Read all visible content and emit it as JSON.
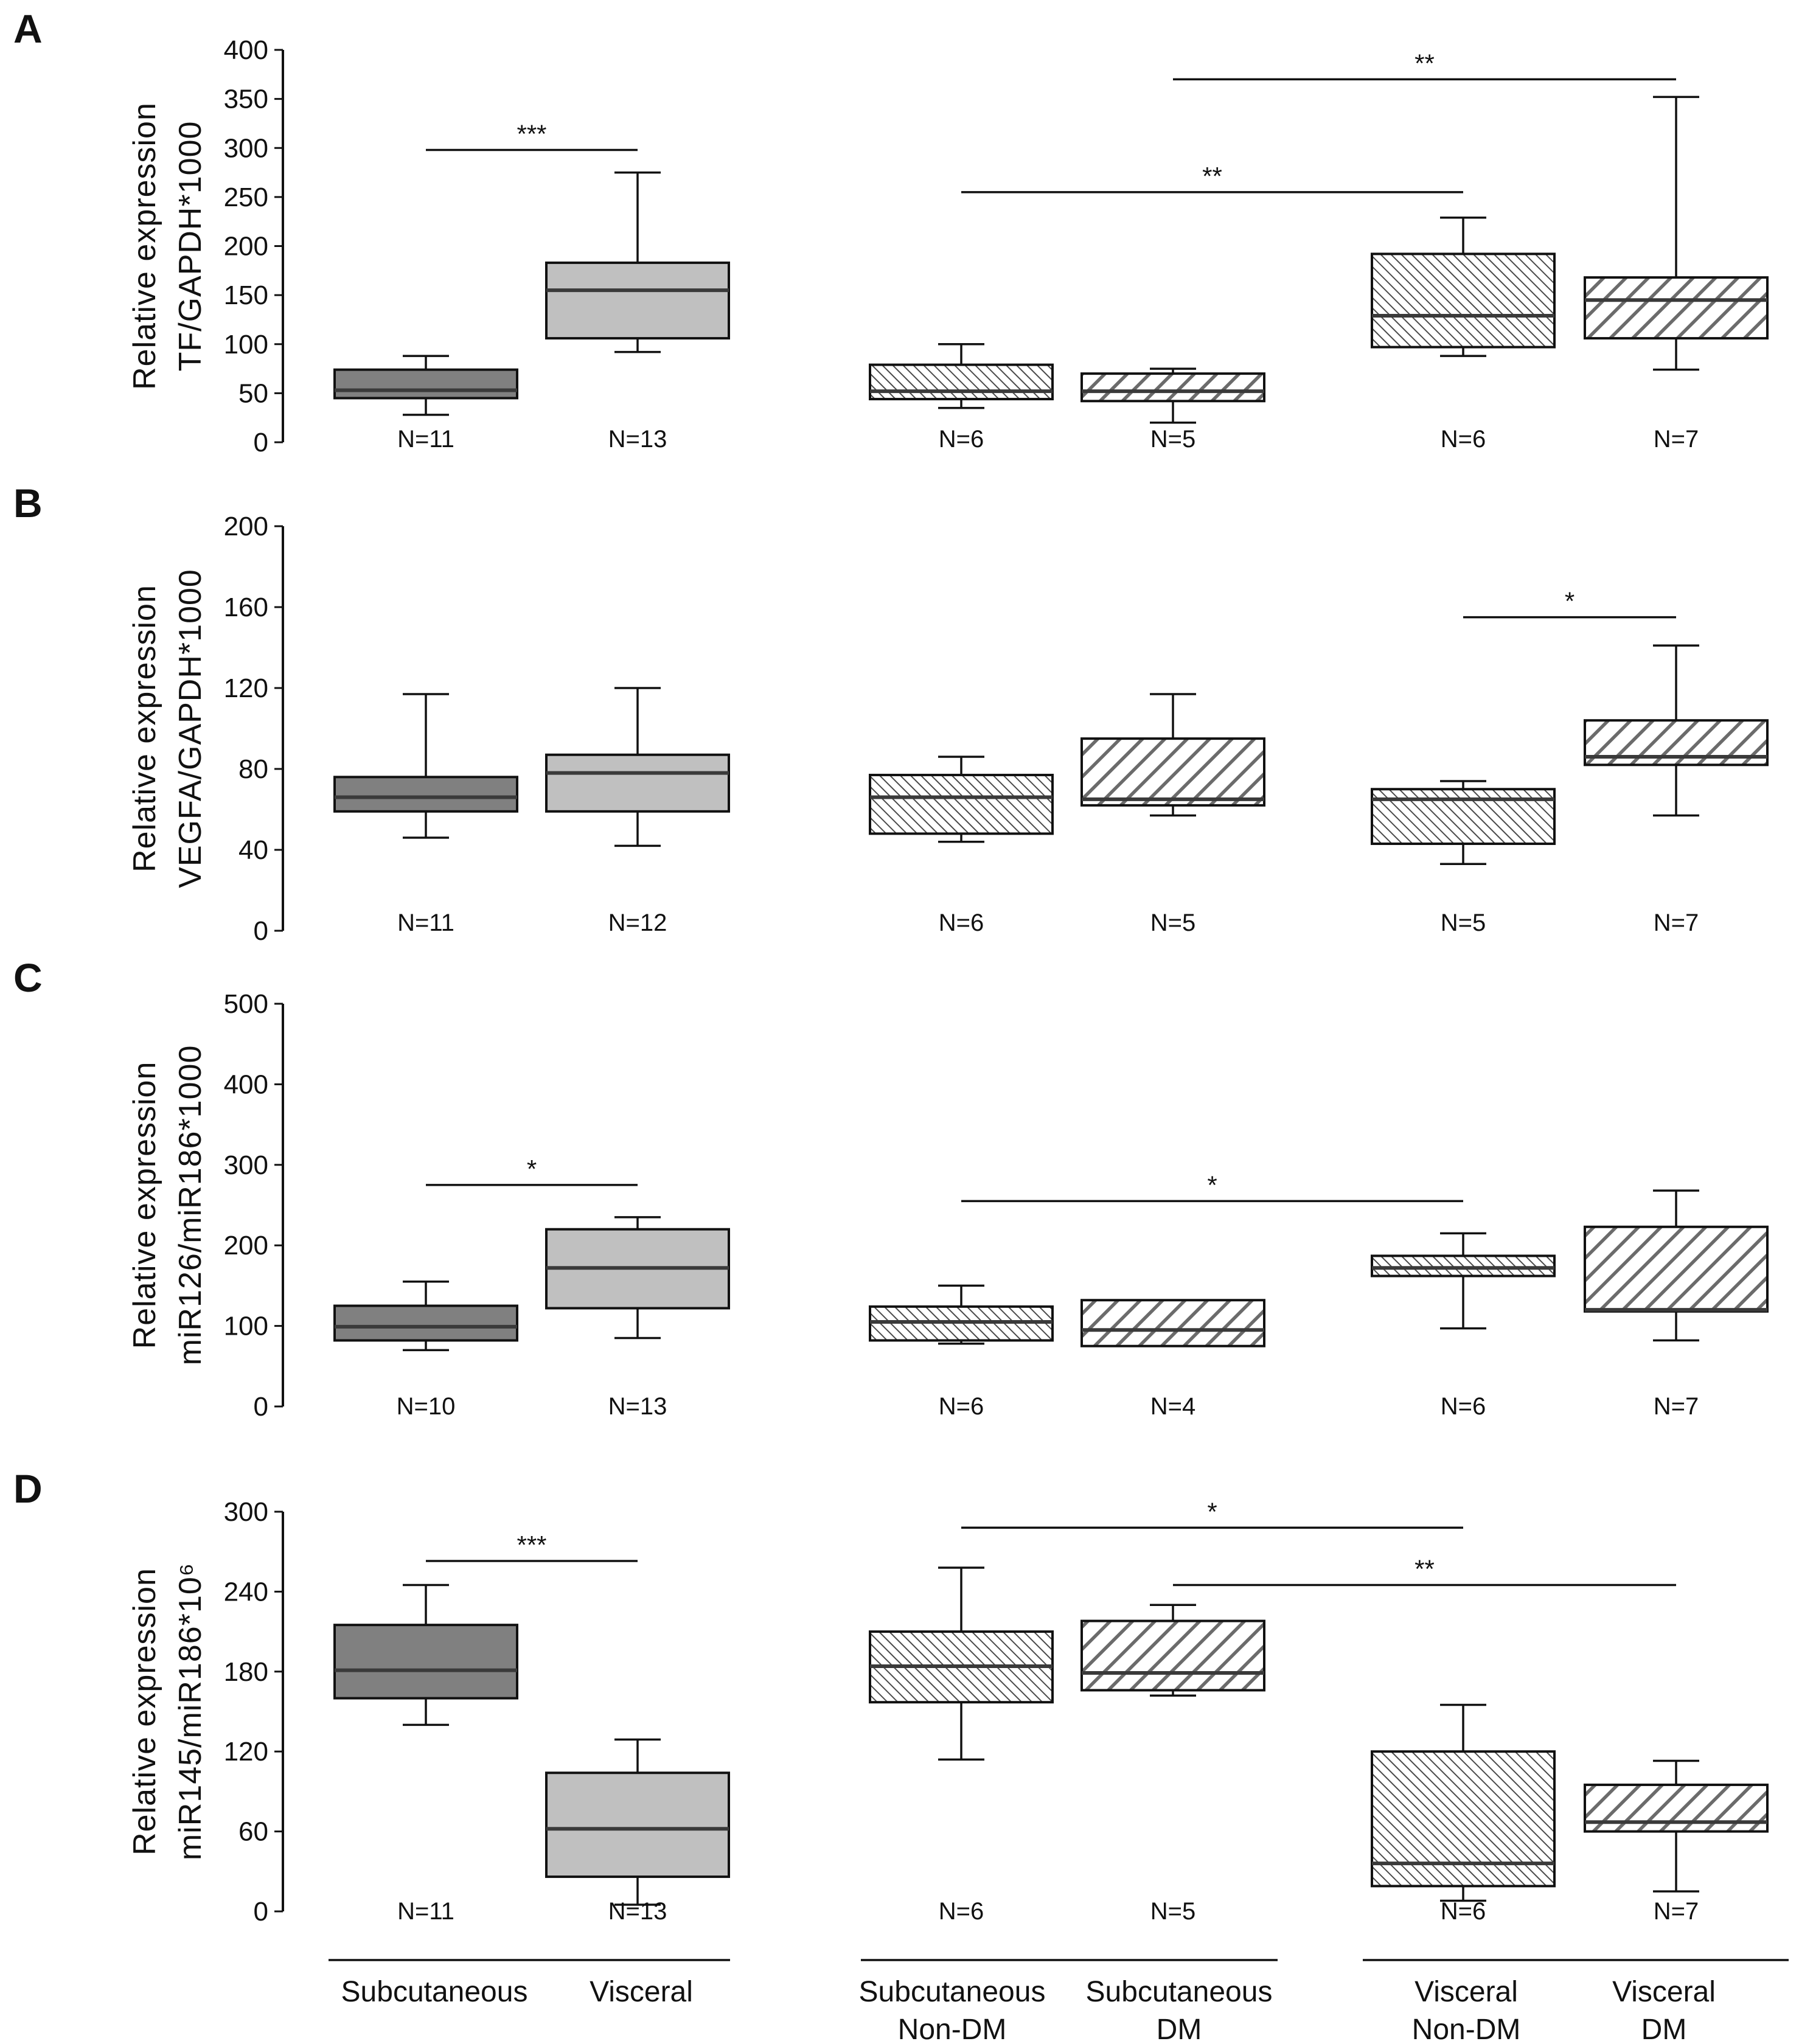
{
  "figure": {
    "groups": [
      {
        "labels": [
          "Subcutaneous"
        ]
      },
      {
        "labels": [
          "Visceral"
        ]
      },
      {
        "labels": [
          "Subcutaneous",
          "Non-DM"
        ]
      },
      {
        "labels": [
          "Subcutaneous",
          "DM"
        ]
      },
      {
        "labels": [
          "Visceral",
          "Non-DM"
        ]
      },
      {
        "labels": [
          "Visceral",
          "DM"
        ]
      }
    ],
    "group_colors": {
      "subcutaneous": "#808080",
      "visceral": "#c0c0c0",
      "stripe_fine": "#4a4a4a",
      "stripe_bold": "#6b6b6b"
    }
  },
  "chart_data": [
    {
      "type": "box",
      "panel": "A",
      "ylabel_lines": [
        "Relative expression",
        "TF/GAPDH*1000"
      ],
      "ylim": [
        0,
        400
      ],
      "yticks": [
        0,
        50,
        100,
        150,
        200,
        250,
        300,
        350,
        400
      ],
      "boxes": [
        {
          "group": "Subcutaneous",
          "min": 28,
          "q1": 45,
          "median": 53,
          "q3": 74,
          "max": 88,
          "n_label": "N=11"
        },
        {
          "group": "Visceral",
          "min": 92,
          "q1": 106,
          "median": 155,
          "q3": 183,
          "max": 275,
          "n_label": "N=13"
        },
        {
          "group": "Subcutaneous Non-DM",
          "min": 35,
          "q1": 44,
          "median": 52,
          "q3": 79,
          "max": 100,
          "n_label": "N=6"
        },
        {
          "group": "Subcutaneous DM",
          "min": 20,
          "q1": 42,
          "median": 52,
          "q3": 70,
          "max": 75,
          "n_label": "N=5"
        },
        {
          "group": "Visceral Non-DM",
          "min": 88,
          "q1": 97,
          "median": 129,
          "q3": 192,
          "max": 229,
          "n_label": "N=6"
        },
        {
          "group": "Visceral DM",
          "min": 74,
          "q1": 106,
          "median": 145,
          "q3": 168,
          "max": 352,
          "n_label": "N=7"
        }
      ],
      "significance": [
        {
          "from": 0,
          "to": 1,
          "y": 298,
          "label": "***"
        },
        {
          "from": 2,
          "to": 4,
          "y": 255,
          "label": "**"
        },
        {
          "from": 3,
          "to": 5,
          "y": 370,
          "label": "**"
        }
      ]
    },
    {
      "type": "box",
      "panel": "B",
      "ylabel_lines": [
        "Relative expression",
        "VEGFA/GAPDH*1000"
      ],
      "ylim": [
        0,
        200
      ],
      "yticks": [
        0,
        40,
        80,
        120,
        160,
        200
      ],
      "boxes": [
        {
          "group": "Subcutaneous",
          "min": 46,
          "q1": 59,
          "median": 66,
          "q3": 76,
          "max": 117,
          "n_label": "N=11"
        },
        {
          "group": "Visceral",
          "min": 42,
          "q1": 59,
          "median": 78,
          "q3": 87,
          "max": 120,
          "n_label": "N=12"
        },
        {
          "group": "Subcutaneous Non-DM",
          "min": 44,
          "q1": 48,
          "median": 66,
          "q3": 77,
          "max": 86,
          "n_label": "N=6"
        },
        {
          "group": "Subcutaneous DM",
          "min": 57,
          "q1": 62,
          "median": 65,
          "q3": 95,
          "max": 117,
          "n_label": "N=5"
        },
        {
          "group": "Visceral Non-DM",
          "min": 33,
          "q1": 43,
          "median": 65,
          "q3": 70,
          "max": 74,
          "n_label": "N=5"
        },
        {
          "group": "Visceral DM",
          "min": 57,
          "q1": 82,
          "median": 86,
          "q3": 104,
          "max": 141,
          "n_label": "N=7"
        }
      ],
      "significance": [
        {
          "from": 4,
          "to": 5,
          "y": 155,
          "label": "*"
        }
      ]
    },
    {
      "type": "box",
      "panel": "C",
      "ylabel_lines": [
        "Relative expression",
        "miR126/miR186*1000"
      ],
      "ylim": [
        0,
        500
      ],
      "yticks": [
        0,
        100,
        200,
        300,
        400,
        500
      ],
      "boxes": [
        {
          "group": "Subcutaneous",
          "min": 70,
          "q1": 82,
          "median": 99,
          "q3": 125,
          "max": 155,
          "n_label": "N=10"
        },
        {
          "group": "Visceral",
          "min": 85,
          "q1": 122,
          "median": 172,
          "q3": 220,
          "max": 235,
          "n_label": "N=13"
        },
        {
          "group": "Subcutaneous Non-DM",
          "min": 78,
          "q1": 82,
          "median": 105,
          "q3": 124,
          "max": 150,
          "n_label": "N=6"
        },
        {
          "group": "Subcutaneous DM",
          "min": 75,
          "q1": 75,
          "median": 95,
          "q3": 132,
          "max": 132,
          "n_label": "N=4"
        },
        {
          "group": "Visceral Non-DM",
          "min": 97,
          "q1": 162,
          "median": 172,
          "q3": 187,
          "max": 215,
          "n_label": "N=6"
        },
        {
          "group": "Visceral DM",
          "min": 82,
          "q1": 118,
          "median": 120,
          "q3": 223,
          "max": 268,
          "n_label": "N=7"
        }
      ],
      "significance": [
        {
          "from": 0,
          "to": 1,
          "y": 275,
          "label": "*"
        },
        {
          "from": 2,
          "to": 4,
          "y": 255,
          "label": "*"
        }
      ]
    },
    {
      "type": "box",
      "panel": "D",
      "ylabel_lines": [
        "Relative expression",
        "miR145/miR186*10⁶"
      ],
      "ylim": [
        0,
        300
      ],
      "yticks": [
        0,
        60,
        120,
        180,
        240,
        300
      ],
      "boxes": [
        {
          "group": "Subcutaneous",
          "min": 140,
          "q1": 160,
          "median": 181,
          "q3": 215,
          "max": 245,
          "n_label": "N=11"
        },
        {
          "group": "Visceral",
          "min": 5,
          "q1": 26,
          "median": 62,
          "q3": 104,
          "max": 129,
          "n_label": "N=13"
        },
        {
          "group": "Subcutaneous Non-DM",
          "min": 114,
          "q1": 157,
          "median": 184,
          "q3": 210,
          "max": 258,
          "n_label": "N=6"
        },
        {
          "group": "Subcutaneous DM",
          "min": 162,
          "q1": 166,
          "median": 179,
          "q3": 218,
          "max": 230,
          "n_label": "N=5"
        },
        {
          "group": "Visceral Non-DM",
          "min": 8,
          "q1": 19,
          "median": 36,
          "q3": 120,
          "max": 155,
          "n_label": "N=6"
        },
        {
          "group": "Visceral DM",
          "min": 15,
          "q1": 60,
          "median": 67,
          "q3": 95,
          "max": 113,
          "n_label": "N=7"
        }
      ],
      "significance": [
        {
          "from": 0,
          "to": 1,
          "y": 263,
          "label": "***"
        },
        {
          "from": 2,
          "to": 4,
          "y": 288,
          "label": "*"
        },
        {
          "from": 3,
          "to": 5,
          "y": 245,
          "label": "**"
        }
      ]
    }
  ]
}
